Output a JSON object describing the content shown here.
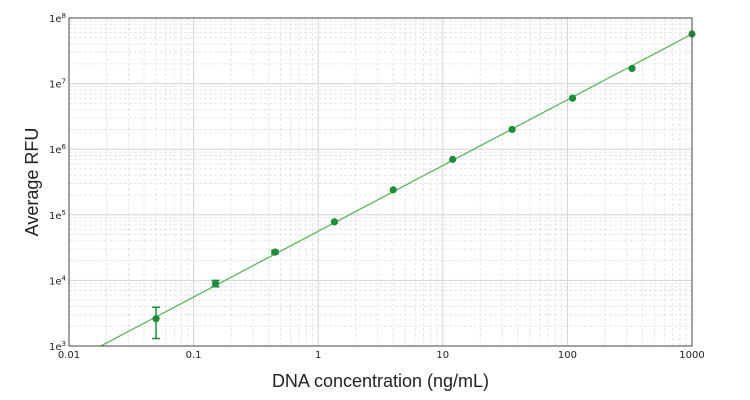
{
  "chart_data": {
    "type": "scatter",
    "title": "",
    "xlabel": "DNA concentration (ng/mL)",
    "ylabel": "Average RFU",
    "xscale": "log",
    "yscale": "log",
    "xlim": [
      0.01,
      1000
    ],
    "ylim": [
      1000,
      100000000
    ],
    "grid": true,
    "x_ticks": [
      {
        "value": 0.01,
        "label": "0.01"
      },
      {
        "value": 0.1,
        "label": "0.1"
      },
      {
        "value": 1,
        "label": "1"
      },
      {
        "value": 10,
        "label": "10"
      },
      {
        "value": 100,
        "label": "100"
      },
      {
        "value": 1000,
        "label": "1000"
      }
    ],
    "y_ticks": [
      {
        "value": 1000,
        "base": "1e",
        "exp": "3"
      },
      {
        "value": 10000,
        "base": "1e",
        "exp": "4"
      },
      {
        "value": 100000,
        "base": "1e",
        "exp": "5"
      },
      {
        "value": 1000000,
        "base": "1e",
        "exp": "6"
      },
      {
        "value": 10000000,
        "base": "1e",
        "exp": "7"
      },
      {
        "value": 100000000,
        "base": "1e",
        "exp": "8"
      }
    ],
    "series": [
      {
        "points": [
          {
            "x": 0.05,
            "y": 2600,
            "err_low": 1300,
            "err_high": 3900
          },
          {
            "x": 0.15,
            "y": 9000,
            "err_low": 8000,
            "err_high": 10000
          },
          {
            "x": 0.45,
            "y": 27000,
            "err_low": 25500,
            "err_high": 28500
          },
          {
            "x": 1.35,
            "y": 78000
          },
          {
            "x": 4,
            "y": 240000
          },
          {
            "x": 12,
            "y": 700000
          },
          {
            "x": 36,
            "y": 2000000
          },
          {
            "x": 110,
            "y": 6000000
          },
          {
            "x": 330,
            "y": 17000000
          },
          {
            "x": 1000,
            "y": 57000000
          }
        ],
        "fit_line": [
          {
            "x": 0.018,
            "y": 1000
          },
          {
            "x": 1000,
            "y": 57000000
          }
        ]
      }
    ],
    "colors": {
      "marker": "#1e8c3a",
      "fit_line": "#5cb85c",
      "grid_major": "#d4d4d4",
      "grid_minor": "#e6e6e6",
      "axis": "#444444"
    }
  }
}
